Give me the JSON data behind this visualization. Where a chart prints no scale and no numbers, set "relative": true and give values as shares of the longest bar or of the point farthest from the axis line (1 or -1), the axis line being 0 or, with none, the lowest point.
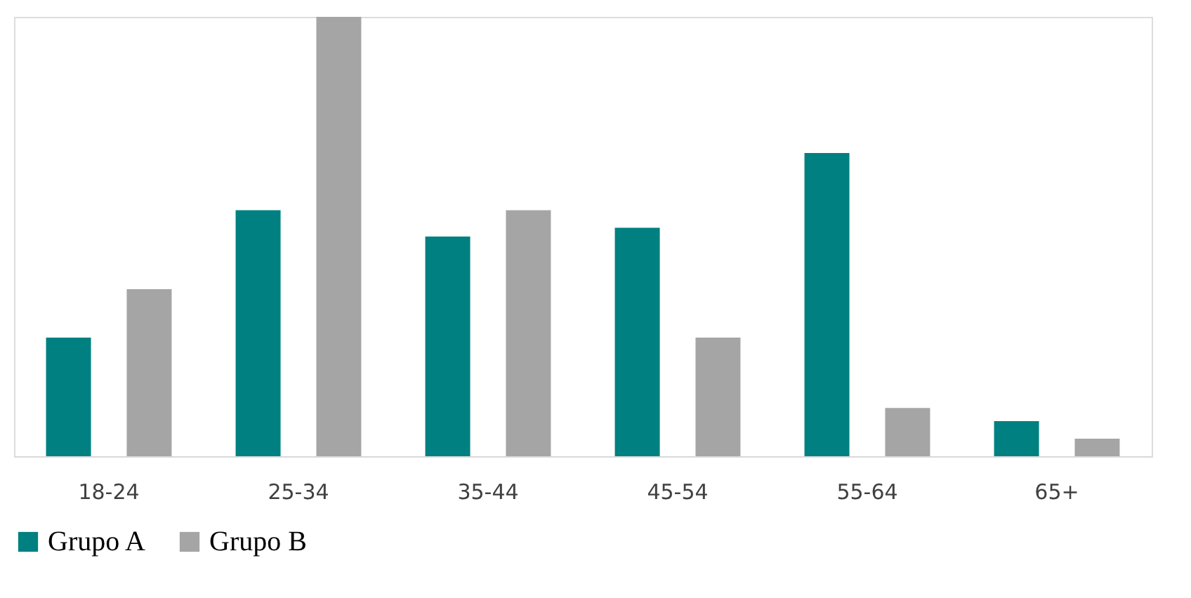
{
  "chart_data": {
    "type": "bar",
    "relative": true,
    "categories": [
      "18-24",
      "25-34",
      "35-44",
      "45-54",
      "55-64",
      "65+"
    ],
    "series": [
      {
        "name": "Grupo A",
        "color": "#008080",
        "values": [
          0.27,
          0.56,
          0.5,
          0.52,
          0.69,
          0.08
        ]
      },
      {
        "name": "Grupo B",
        "color": "#a5a5a5",
        "values": [
          0.38,
          1,
          0.56,
          0.27,
          0.11,
          0.04
        ]
      }
    ],
    "legend": "bottom",
    "grid": false
  }
}
